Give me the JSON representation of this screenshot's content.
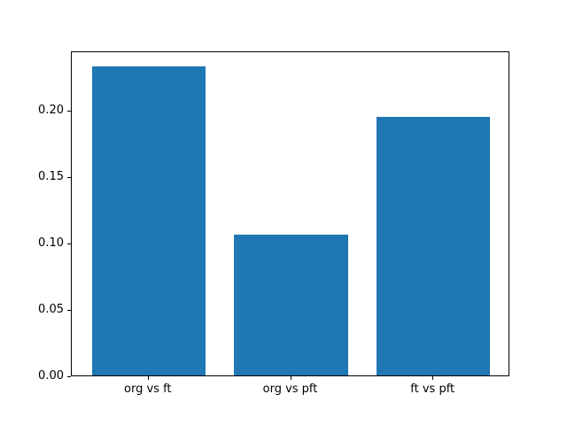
{
  "chart_data": {
    "type": "bar",
    "title": "",
    "xlabel": "",
    "ylabel": "",
    "categories": [
      "org vs ft",
      "org vs pft",
      "ft vs pft"
    ],
    "values": [
      0.233,
      0.106,
      0.195
    ],
    "bar_color": "#1f77b4",
    "bar_width_units": 0.8,
    "xlim": [
      -0.54,
      2.54
    ],
    "ylim": [
      0,
      0.2447
    ],
    "ytick_values": [
      0.0,
      0.05,
      0.1,
      0.15,
      0.2
    ],
    "ytick_labels": [
      "0.00",
      "0.05",
      "0.10",
      "0.15",
      "0.20"
    ],
    "grid": false,
    "legend": null,
    "spine_color": "#000000",
    "background_color": "#ffffff"
  }
}
